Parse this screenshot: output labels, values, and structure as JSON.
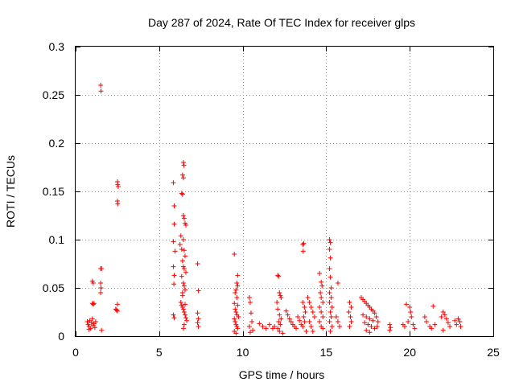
{
  "chart_data": {
    "type": "scatter",
    "title": "Day 287 of 2024, Rate Of TEC Index for receiver glps",
    "xlabel": "GPS time / hours",
    "ylabel": "ROTI / TECUs",
    "xlim": [
      0,
      25
    ],
    "ylim": [
      0,
      0.3
    ],
    "xticks": [
      0,
      5,
      10,
      15,
      20,
      25
    ],
    "yticks": [
      0,
      0.05,
      0.1,
      0.15,
      0.2,
      0.25,
      0.3
    ],
    "xtick_labels": [
      "0",
      "5",
      "10",
      "15",
      "20",
      "25"
    ],
    "ytick_labels": [
      "0",
      "0.05",
      "0.1",
      "0.15",
      "0.2",
      "0.25",
      "0.3"
    ],
    "grid": true,
    "marker": "+",
    "color": "#ff0000",
    "series": [
      {
        "name": "ROTI",
        "points": [
          [
            1.5,
            0.26
          ],
          [
            1.52,
            0.254
          ],
          [
            1.5,
            0.07
          ],
          [
            1.55,
            0.07
          ],
          [
            1.0,
            0.057
          ],
          [
            1.05,
            0.055
          ],
          [
            1.5,
            0.055
          ],
          [
            1.52,
            0.05
          ],
          [
            1.5,
            0.045
          ],
          [
            1.0,
            0.034
          ],
          [
            1.05,
            0.033
          ],
          [
            1.1,
            0.034
          ],
          [
            0.7,
            0.015
          ],
          [
            0.75,
            0.012
          ],
          [
            0.8,
            0.01
          ],
          [
            0.85,
            0.016
          ],
          [
            0.9,
            0.008
          ],
          [
            0.95,
            0.014
          ],
          [
            1.0,
            0.018
          ],
          [
            1.05,
            0.011
          ],
          [
            1.1,
            0.013
          ],
          [
            1.15,
            0.009
          ],
          [
            1.2,
            0.015
          ],
          [
            0.8,
            0.007
          ],
          [
            1.55,
            0.006
          ],
          [
            2.5,
            0.16
          ],
          [
            2.52,
            0.157
          ],
          [
            2.55,
            0.155
          ],
          [
            2.5,
            0.14
          ],
          [
            2.52,
            0.137
          ],
          [
            2.4,
            0.028
          ],
          [
            2.45,
            0.027
          ],
          [
            2.5,
            0.026
          ],
          [
            2.5,
            0.033
          ],
          [
            5.85,
            0.159
          ],
          [
            5.9,
            0.135
          ],
          [
            5.9,
            0.116
          ],
          [
            5.85,
            0.098
          ],
          [
            5.95,
            0.088
          ],
          [
            5.85,
            0.072
          ],
          [
            5.9,
            0.063
          ],
          [
            5.88,
            0.054
          ],
          [
            5.85,
            0.022
          ],
          [
            5.9,
            0.019
          ],
          [
            6.3,
            0.104
          ],
          [
            6.25,
            0.095
          ],
          [
            6.35,
            0.09
          ],
          [
            6.45,
            0.18
          ],
          [
            6.48,
            0.177
          ],
          [
            6.4,
            0.167
          ],
          [
            6.45,
            0.164
          ],
          [
            6.35,
            0.148
          ],
          [
            6.4,
            0.147
          ],
          [
            6.45,
            0.125
          ],
          [
            6.5,
            0.122
          ],
          [
            6.55,
            0.117
          ],
          [
            6.6,
            0.115
          ],
          [
            6.45,
            0.1
          ],
          [
            6.5,
            0.089
          ],
          [
            6.55,
            0.083
          ],
          [
            6.4,
            0.078
          ],
          [
            6.45,
            0.072
          ],
          [
            6.5,
            0.07
          ],
          [
            6.6,
            0.066
          ],
          [
            6.35,
            0.062
          ],
          [
            6.45,
            0.055
          ],
          [
            6.5,
            0.052
          ],
          [
            6.55,
            0.048
          ],
          [
            6.4,
            0.042
          ],
          [
            6.3,
            0.035
          ],
          [
            6.35,
            0.032
          ],
          [
            6.4,
            0.03
          ],
          [
            6.45,
            0.028
          ],
          [
            6.5,
            0.025
          ],
          [
            6.55,
            0.022
          ],
          [
            6.6,
            0.019
          ],
          [
            6.65,
            0.016
          ],
          [
            6.5,
            0.012
          ],
          [
            6.45,
            0.008
          ],
          [
            6.55,
            0.033
          ],
          [
            6.4,
            0.045
          ],
          [
            7.3,
            0.075
          ],
          [
            7.35,
            0.047
          ],
          [
            7.3,
            0.024
          ],
          [
            7.35,
            0.018
          ],
          [
            7.3,
            0.014
          ],
          [
            7.35,
            0.01
          ],
          [
            9.5,
            0.085
          ],
          [
            9.7,
            0.063
          ],
          [
            9.65,
            0.055
          ],
          [
            9.7,
            0.052
          ],
          [
            9.6,
            0.048
          ],
          [
            9.55,
            0.045
          ],
          [
            9.65,
            0.04
          ],
          [
            9.5,
            0.034
          ],
          [
            9.7,
            0.032
          ],
          [
            9.55,
            0.028
          ],
          [
            9.6,
            0.025
          ],
          [
            9.65,
            0.022
          ],
          [
            9.5,
            0.018
          ],
          [
            9.55,
            0.015
          ],
          [
            9.6,
            0.012
          ],
          [
            9.65,
            0.01
          ],
          [
            9.7,
            0.008
          ],
          [
            9.5,
            0.005
          ],
          [
            9.6,
            0.003
          ],
          [
            9.75,
            0.02
          ],
          [
            10.4,
            0.04
          ],
          [
            10.45,
            0.035
          ],
          [
            10.5,
            0.024
          ],
          [
            10.55,
            0.015
          ],
          [
            10.4,
            0.01
          ],
          [
            10.6,
            0.006
          ],
          [
            10.45,
            0.004
          ],
          [
            11.0,
            0.013
          ],
          [
            11.2,
            0.01
          ],
          [
            11.4,
            0.008
          ],
          [
            11.6,
            0.012
          ],
          [
            11.8,
            0.008
          ],
          [
            11.9,
            0.01
          ],
          [
            12.1,
            0.063
          ],
          [
            12.15,
            0.062
          ],
          [
            12.2,
            0.045
          ],
          [
            12.25,
            0.042
          ],
          [
            12.3,
            0.04
          ],
          [
            12.05,
            0.035
          ],
          [
            12.1,
            0.028
          ],
          [
            12.2,
            0.022
          ],
          [
            12.3,
            0.018
          ],
          [
            12.15,
            0.015
          ],
          [
            12.25,
            0.012
          ],
          [
            12.1,
            0.008
          ],
          [
            12.2,
            0.005
          ],
          [
            12.4,
            0.003
          ],
          [
            12.6,
            0.026
          ],
          [
            12.7,
            0.022
          ],
          [
            12.8,
            0.018
          ],
          [
            12.9,
            0.015
          ],
          [
            13.0,
            0.012
          ],
          [
            13.1,
            0.01
          ],
          [
            13.2,
            0.008
          ],
          [
            13.3,
            0.02
          ],
          [
            13.4,
            0.016
          ],
          [
            13.5,
            0.012
          ],
          [
            13.6,
            0.095
          ],
          [
            13.65,
            0.096
          ],
          [
            13.62,
            0.088
          ],
          [
            13.6,
            0.035
          ],
          [
            13.7,
            0.03
          ],
          [
            13.75,
            0.025
          ],
          [
            13.65,
            0.02
          ],
          [
            13.7,
            0.015
          ],
          [
            13.6,
            0.01
          ],
          [
            13.8,
            0.005
          ],
          [
            13.9,
            0.04
          ],
          [
            14.0,
            0.035
          ],
          [
            14.1,
            0.03
          ],
          [
            14.2,
            0.025
          ],
          [
            14.3,
            0.02
          ],
          [
            14.0,
            0.015
          ],
          [
            14.1,
            0.01
          ],
          [
            14.2,
            0.005
          ],
          [
            14.6,
            0.065
          ],
          [
            14.7,
            0.056
          ],
          [
            14.75,
            0.052
          ],
          [
            14.65,
            0.045
          ],
          [
            14.7,
            0.04
          ],
          [
            14.8,
            0.035
          ],
          [
            14.6,
            0.03
          ],
          [
            14.7,
            0.025
          ],
          [
            14.8,
            0.02
          ],
          [
            14.6,
            0.015
          ],
          [
            14.7,
            0.01
          ],
          [
            14.8,
            0.008
          ],
          [
            15.2,
            0.1
          ],
          [
            15.25,
            0.097
          ],
          [
            15.2,
            0.09
          ],
          [
            15.25,
            0.081
          ],
          [
            15.2,
            0.07
          ],
          [
            15.25,
            0.061
          ],
          [
            15.3,
            0.05
          ],
          [
            15.2,
            0.045
          ],
          [
            15.3,
            0.04
          ],
          [
            15.2,
            0.035
          ],
          [
            15.35,
            0.03
          ],
          [
            15.25,
            0.025
          ],
          [
            15.3,
            0.02
          ],
          [
            15.2,
            0.015
          ],
          [
            15.35,
            0.01
          ],
          [
            15.25,
            0.005
          ],
          [
            15.7,
            0.055
          ],
          [
            15.6,
            0.02
          ],
          [
            15.7,
            0.015
          ],
          [
            15.8,
            0.01
          ],
          [
            16.4,
            0.035
          ],
          [
            16.5,
            0.03
          ],
          [
            16.35,
            0.025
          ],
          [
            16.45,
            0.02
          ],
          [
            16.5,
            0.015
          ],
          [
            16.4,
            0.01
          ],
          [
            17.1,
            0.04
          ],
          [
            17.2,
            0.038
          ],
          [
            17.3,
            0.036
          ],
          [
            17.4,
            0.034
          ],
          [
            17.5,
            0.032
          ],
          [
            17.6,
            0.03
          ],
          [
            17.7,
            0.028
          ],
          [
            17.8,
            0.026
          ],
          [
            17.9,
            0.024
          ],
          [
            17.2,
            0.022
          ],
          [
            17.4,
            0.02
          ],
          [
            17.6,
            0.018
          ],
          [
            17.8,
            0.016
          ],
          [
            17.3,
            0.014
          ],
          [
            17.5,
            0.012
          ],
          [
            17.7,
            0.01
          ],
          [
            17.9,
            0.008
          ],
          [
            17.4,
            0.006
          ],
          [
            17.6,
            0.004
          ],
          [
            18.0,
            0.02
          ],
          [
            18.1,
            0.015
          ],
          [
            18.05,
            0.01
          ],
          [
            18.8,
            0.012
          ],
          [
            18.85,
            0.009
          ],
          [
            18.8,
            0.006
          ],
          [
            19.8,
            0.033
          ],
          [
            20.0,
            0.03
          ],
          [
            19.6,
            0.012
          ],
          [
            19.7,
            0.01
          ],
          [
            19.9,
            0.015
          ],
          [
            20.1,
            0.02
          ],
          [
            20.2,
            0.012
          ],
          [
            20.3,
            0.008
          ],
          [
            20.05,
            0.025
          ],
          [
            20.9,
            0.02
          ],
          [
            21.0,
            0.015
          ],
          [
            21.2,
            0.01
          ],
          [
            21.4,
            0.031
          ],
          [
            21.5,
            0.012
          ],
          [
            21.3,
            0.008
          ],
          [
            21.9,
            0.02
          ],
          [
            22.0,
            0.025
          ],
          [
            22.1,
            0.022
          ],
          [
            22.2,
            0.018
          ],
          [
            22.3,
            0.014
          ],
          [
            22.4,
            0.01
          ],
          [
            22.0,
            0.006
          ],
          [
            22.7,
            0.016
          ],
          [
            22.8,
            0.012
          ],
          [
            22.9,
            0.018
          ],
          [
            23.0,
            0.015
          ],
          [
            23.05,
            0.01
          ]
        ]
      }
    ]
  }
}
